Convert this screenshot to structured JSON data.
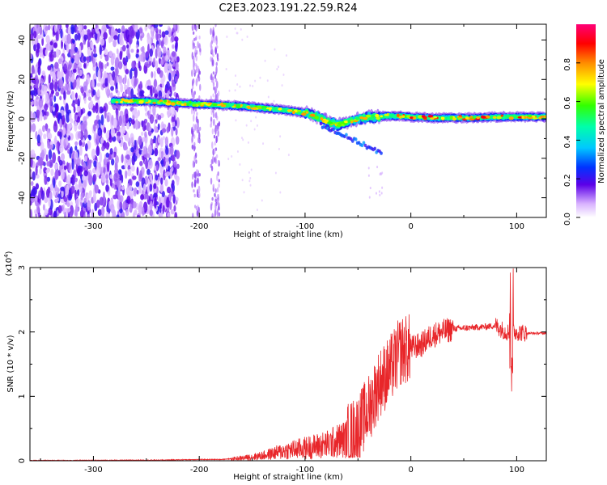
{
  "title": "C2E3.2023.191.22.59.R24",
  "colors": {
    "snr_line": "#e8262a",
    "axis": "#000000",
    "background": "#ffffff"
  },
  "chart_data": [
    {
      "type": "heatmap",
      "xlabel": "Height of straight line (km)",
      "ylabel": "Frequency (Hz)",
      "xlim": [
        -360,
        128
      ],
      "ylim": [
        -50,
        48
      ],
      "x_ticks": [
        -300,
        -200,
        -100,
        0,
        100
      ],
      "y_ticks": [
        -40,
        -20,
        0,
        20,
        40
      ],
      "colorbar": {
        "label": "Normalized spectral amplitude",
        "range": [
          0,
          1
        ],
        "ticks": [
          "0.0",
          "0.2",
          "0.4",
          "0.6",
          "0.8"
        ]
      },
      "ridge": {
        "x": [
          -280,
          -250,
          -220,
          -200,
          -180,
          -160,
          -140,
          -120,
          -100,
          -90,
          -80,
          -70,
          -60,
          -50,
          -40,
          -30,
          -20,
          -10,
          0,
          20,
          40,
          60,
          80,
          100,
          128
        ],
        "frequency": [
          9,
          9,
          8,
          7.5,
          7,
          6.5,
          5.5,
          4.5,
          3,
          1.5,
          -1,
          -3,
          -2,
          0,
          1,
          1,
          1.5,
          1.5,
          1,
          0.5,
          0.5,
          0.5,
          1,
          1,
          1
        ]
      }
    },
    {
      "type": "line",
      "xlabel": "Height of straight line (km)",
      "ylabel": "SNR (10 * v/v)",
      "y_multiplier": "x10^4",
      "xlim": [
        -360,
        128
      ],
      "ylim": [
        0,
        3
      ],
      "x_ticks": [
        -300,
        -200,
        -100,
        0,
        100
      ],
      "y_ticks": [
        0,
        1,
        2,
        3
      ],
      "series": [
        {
          "x": [
            -360,
            -320,
            -280,
            -240,
            -200,
            -180,
            -160,
            -140,
            -120,
            -100,
            -80,
            -60,
            -50,
            -40,
            -30,
            -20,
            -10,
            0,
            10,
            20,
            30,
            40,
            60,
            70,
            80,
            90,
            95,
            100,
            110,
            128
          ],
          "y": [
            0.005,
            0.006,
            0.008,
            0.01,
            0.02,
            0.02,
            0.04,
            0.08,
            0.15,
            0.2,
            0.25,
            0.35,
            0.5,
            0.8,
            1.2,
            1.4,
            1.7,
            1.75,
            1.8,
            1.95,
            2.0,
            2.05,
            2.07,
            2.08,
            2.1,
            2.0,
            2.0,
            2.0,
            1.98,
            1.98
          ]
        }
      ]
    }
  ]
}
